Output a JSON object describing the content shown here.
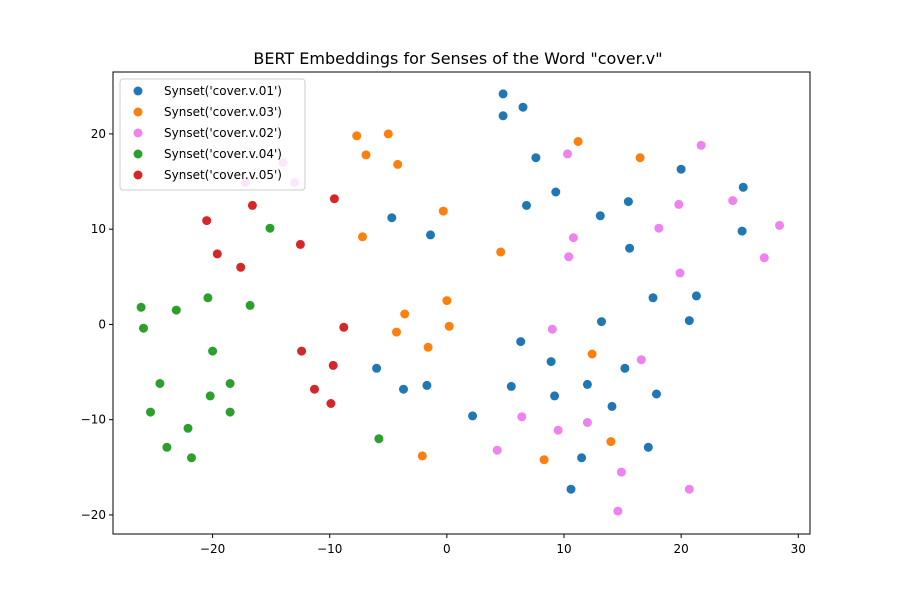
{
  "chart_data": {
    "type": "scatter",
    "title": "BERT Embeddings for Senses of the Word \"cover.v\"",
    "xlabel": "",
    "ylabel": "",
    "xlim": [
      -28.5,
      31
    ],
    "ylim": [
      -22,
      26.5
    ],
    "xticks": [
      -20,
      -10,
      0,
      10,
      20,
      30
    ],
    "yticks": [
      -20,
      -10,
      0,
      10,
      20
    ],
    "grid": false,
    "legend_position": "top-left",
    "series": [
      {
        "name": "Synset('cover.v.01')",
        "color": "#1f77b4",
        "points": [
          [
            4.8,
            24.2
          ],
          [
            6.5,
            22.8
          ],
          [
            4.8,
            21.9
          ],
          [
            7.6,
            17.5
          ],
          [
            9.3,
            13.9
          ],
          [
            6.8,
            12.5
          ],
          [
            -4.7,
            11.2
          ],
          [
            -1.4,
            9.4
          ],
          [
            13.1,
            11.4
          ],
          [
            15.5,
            12.9
          ],
          [
            15.6,
            8.0
          ],
          [
            20.0,
            16.3
          ],
          [
            25.3,
            14.4
          ],
          [
            25.2,
            9.8
          ],
          [
            21.3,
            3.0
          ],
          [
            17.6,
            2.8
          ],
          [
            20.7,
            0.4
          ],
          [
            13.2,
            0.3
          ],
          [
            6.3,
            -1.8
          ],
          [
            8.9,
            -3.9
          ],
          [
            15.2,
            -4.6
          ],
          [
            -6.0,
            -4.6
          ],
          [
            -3.7,
            -6.8
          ],
          [
            -1.7,
            -6.4
          ],
          [
            5.5,
            -6.5
          ],
          [
            12.0,
            -6.3
          ],
          [
            9.2,
            -7.5
          ],
          [
            17.9,
            -7.3
          ],
          [
            14.1,
            -8.6
          ],
          [
            2.2,
            -9.6
          ],
          [
            17.2,
            -12.9
          ],
          [
            11.5,
            -14.0
          ],
          [
            10.6,
            -17.3
          ]
        ]
      },
      {
        "name": "Synset('cover.v.03')",
        "color": "#ff7f0e",
        "points": [
          [
            -7.7,
            19.8
          ],
          [
            -5.0,
            20.0
          ],
          [
            -6.9,
            17.8
          ],
          [
            -4.2,
            16.8
          ],
          [
            11.2,
            19.2
          ],
          [
            16.5,
            17.5
          ],
          [
            -0.3,
            11.9
          ],
          [
            -7.2,
            9.2
          ],
          [
            4.6,
            7.6
          ],
          [
            0.0,
            2.5
          ],
          [
            -3.6,
            1.1
          ],
          [
            0.2,
            -0.2
          ],
          [
            -4.3,
            -0.8
          ],
          [
            -1.6,
            -2.4
          ],
          [
            12.4,
            -3.1
          ],
          [
            14.0,
            -12.3
          ],
          [
            -2.1,
            -13.8
          ],
          [
            8.3,
            -14.2
          ]
        ]
      },
      {
        "name": "Synset('cover.v.02')",
        "color": "#ee82ee",
        "points": [
          [
            21.7,
            18.8
          ],
          [
            10.3,
            17.9
          ],
          [
            -14.0,
            17.0
          ],
          [
            -17.2,
            14.9
          ],
          [
            -13.0,
            14.9
          ],
          [
            24.4,
            13.0
          ],
          [
            19.8,
            12.6
          ],
          [
            18.1,
            10.1
          ],
          [
            28.4,
            10.4
          ],
          [
            10.8,
            9.1
          ],
          [
            10.4,
            7.1
          ],
          [
            27.1,
            7.0
          ],
          [
            19.9,
            5.4
          ],
          [
            9.0,
            -0.5
          ],
          [
            16.6,
            -3.7
          ],
          [
            6.4,
            -9.7
          ],
          [
            12.0,
            -10.3
          ],
          [
            9.5,
            -11.1
          ],
          [
            4.3,
            -13.2
          ],
          [
            14.9,
            -15.5
          ],
          [
            20.7,
            -17.3
          ],
          [
            14.6,
            -19.6
          ]
        ]
      },
      {
        "name": "Synset('cover.v.04')",
        "color": "#2ca02c",
        "points": [
          [
            -15.1,
            10.1
          ],
          [
            -20.4,
            2.8
          ],
          [
            -16.8,
            2.0
          ],
          [
            -26.1,
            1.8
          ],
          [
            -23.1,
            1.5
          ],
          [
            -25.9,
            -0.4
          ],
          [
            -20.0,
            -2.8
          ],
          [
            -24.5,
            -6.2
          ],
          [
            -18.5,
            -6.2
          ],
          [
            -20.2,
            -7.5
          ],
          [
            -25.3,
            -9.2
          ],
          [
            -18.5,
            -9.2
          ],
          [
            -22.1,
            -10.9
          ],
          [
            -23.9,
            -12.9
          ],
          [
            -21.8,
            -14.0
          ],
          [
            -5.8,
            -12.0
          ]
        ]
      },
      {
        "name": "Synset('cover.v.05')",
        "color": "#d62728",
        "points": [
          [
            -9.6,
            13.2
          ],
          [
            -16.6,
            12.5
          ],
          [
            -20.5,
            10.9
          ],
          [
            -12.5,
            8.4
          ],
          [
            -19.6,
            7.4
          ],
          [
            -17.6,
            6.0
          ],
          [
            -8.8,
            -0.3
          ],
          [
            -12.4,
            -2.8
          ],
          [
            -9.7,
            -4.3
          ],
          [
            -11.3,
            -6.8
          ],
          [
            -9.9,
            -8.3
          ]
        ]
      }
    ]
  }
}
